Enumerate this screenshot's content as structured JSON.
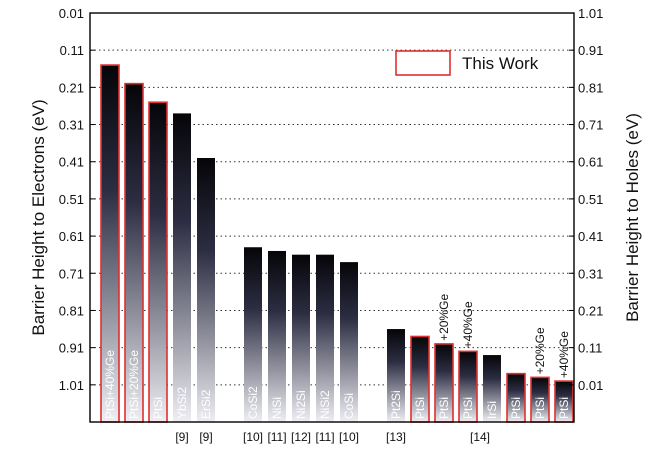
{
  "chart_data": {
    "type": "bar",
    "left_axis": {
      "label": "Barrier Height to Electrons (eV)",
      "ticks": [
        "0.01",
        "0.11",
        "0.21",
        "0.31",
        "0.41",
        "0.51",
        "0.61",
        "0.71",
        "0.81",
        "0.91",
        "1.01"
      ],
      "range": [
        0.01,
        1.11
      ],
      "inverted": true
    },
    "right_axis": {
      "label": "Barrier Height to Holes (eV)",
      "ticks": [
        "1.01",
        "0.91",
        "0.81",
        "0.71",
        "0.61",
        "0.51",
        "0.41",
        "0.31",
        "0.21",
        "0.11",
        "0.01"
      ],
      "range": [
        0.01,
        1.11
      ]
    },
    "grid": "dotted horizontal",
    "legend": {
      "label": "This Work",
      "position": "top-right",
      "color": "#e03030"
    },
    "bars": [
      {
        "label": "PtSi+40%Ge",
        "group": 0,
        "electron_barrier": 0.15,
        "this_work": true
      },
      {
        "label": "PtSi+20%Ge",
        "group": 0,
        "electron_barrier": 0.2,
        "this_work": true
      },
      {
        "label": "PtSi",
        "group": 0,
        "electron_barrier": 0.25,
        "this_work": true
      },
      {
        "label": "YbSi2",
        "group": 0,
        "electron_barrier": 0.28,
        "this_work": false
      },
      {
        "label": "ErSi2",
        "group": 0,
        "electron_barrier": 0.4,
        "this_work": false
      },
      {
        "label": "CoSi2",
        "group": 1,
        "electron_barrier": 0.64,
        "this_work": false
      },
      {
        "label": "NiSi",
        "group": 1,
        "electron_barrier": 0.65,
        "this_work": false
      },
      {
        "label": "Ni2Si",
        "group": 1,
        "electron_barrier": 0.66,
        "this_work": false
      },
      {
        "label": "NiSi2",
        "group": 1,
        "electron_barrier": 0.66,
        "this_work": false
      },
      {
        "label": "CoSi",
        "group": 1,
        "electron_barrier": 0.68,
        "this_work": false
      },
      {
        "label": "Pt2Si",
        "group": 2,
        "electron_barrier": 0.86,
        "this_work": false
      },
      {
        "label": "PtSi",
        "group": 2,
        "electron_barrier": 0.88,
        "this_work": true
      },
      {
        "label": "PtSi",
        "group": 2,
        "electron_barrier": 0.9,
        "this_work": true,
        "note": "+20%Ge"
      },
      {
        "label": "PtSi",
        "group": 2,
        "electron_barrier": 0.92,
        "this_work": true,
        "note": "+40%Ge"
      },
      {
        "label": "IrSi",
        "group": 2,
        "electron_barrier": 0.93,
        "this_work": false
      },
      {
        "label": "PtSi",
        "group": 2,
        "electron_barrier": 0.98,
        "this_work": true
      },
      {
        "label": "PtSi",
        "group": 2,
        "electron_barrier": 0.99,
        "this_work": true,
        "note": "+20%Ge"
      },
      {
        "label": "PtSi",
        "group": 2,
        "electron_barrier": 1.0,
        "this_work": true,
        "note": "+40%Ge"
      }
    ],
    "references": [
      {
        "text": "[9]",
        "bar_index": 3
      },
      {
        "text": "[9]",
        "bar_index": 4
      },
      {
        "text": "[10]",
        "bar_index": 5
      },
      {
        "text": "[11]",
        "bar_index": 6
      },
      {
        "text": "[12]",
        "bar_index": 7
      },
      {
        "text": "[11]",
        "bar_index": 8
      },
      {
        "text": "[10]",
        "bar_index": 9
      },
      {
        "text": "[13]",
        "bar_index": 10
      },
      {
        "text": "[14]",
        "bar_index": 13.5
      }
    ]
  }
}
